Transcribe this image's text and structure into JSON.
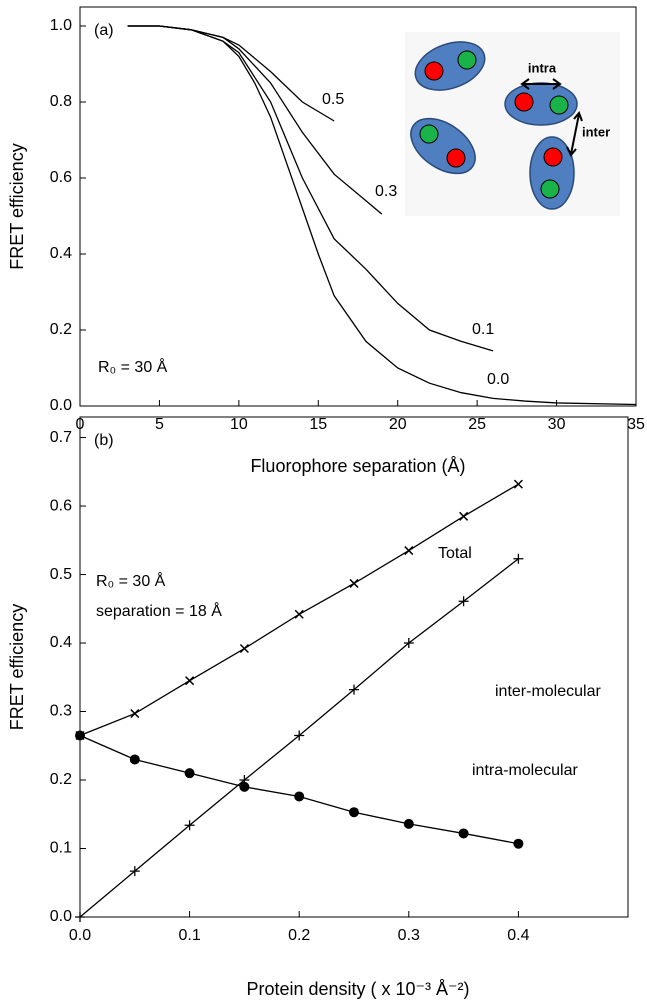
{
  "chart_data": [
    {
      "type": "line",
      "panel_label": "(a)",
      "x_label": "Fluorophore separation (Å)",
      "y_label": "FRET efficiency",
      "annotations": [
        "R₀ = 30 Å"
      ],
      "xlim": [
        0,
        35
      ],
      "ylim": [
        0,
        1.05
      ],
      "xticks": [
        0,
        5,
        10,
        15,
        20,
        25,
        30,
        35
      ],
      "yticks": [
        {
          "value": 0,
          "label": "0.0"
        },
        0.2,
        0.4,
        0.6,
        0.8,
        {
          "value": 1,
          "label": "1.0"
        }
      ],
      "color": "#000000",
      "series": [
        {
          "name": "0.5",
          "x": [
            3,
            5,
            7,
            9,
            10,
            12,
            14,
            16
          ],
          "values": [
            1.0,
            1.0,
            0.99,
            0.97,
            0.95,
            0.88,
            0.8,
            0.75
          ]
        },
        {
          "name": "0.3",
          "x": [
            3,
            5,
            7,
            9,
            10,
            12,
            14,
            16,
            18,
            19
          ],
          "values": [
            1.0,
            1.0,
            0.99,
            0.97,
            0.94,
            0.85,
            0.72,
            0.61,
            0.54,
            0.505
          ]
        },
        {
          "name": "0.1",
          "x": [
            3,
            5,
            7,
            9,
            10,
            12,
            14,
            16,
            18,
            20,
            22,
            24,
            26
          ],
          "values": [
            1.0,
            1.0,
            0.99,
            0.96,
            0.93,
            0.8,
            0.6,
            0.44,
            0.36,
            0.27,
            0.2,
            0.17,
            0.145
          ]
        },
        {
          "name": "0.0",
          "x": [
            3,
            5,
            7,
            9,
            10,
            11,
            12,
            13,
            14,
            15,
            16,
            18,
            20,
            22,
            24,
            26,
            28,
            30,
            35
          ],
          "values": [
            1.0,
            1.0,
            0.99,
            0.96,
            0.92,
            0.85,
            0.76,
            0.64,
            0.52,
            0.4,
            0.29,
            0.17,
            0.1,
            0.06,
            0.035,
            0.02,
            0.013,
            0.008,
            0.004
          ]
        }
      ],
      "inset_labels": [
        "intra",
        "inter"
      ]
    },
    {
      "type": "line",
      "panel_label": "(b)",
      "x_label": "Protein density ( x 10⁻³ Å⁻²)",
      "y_label": "FRET efficiency",
      "annotations": [
        "R₀ = 30 Å",
        "separation = 18 Å"
      ],
      "xlim": [
        0,
        0.5
      ],
      "ylim": [
        0,
        0.73
      ],
      "xticks": [
        {
          "value": 0,
          "label": "0.0"
        },
        0.1,
        0.2,
        0.3,
        0.4
      ],
      "yticks": [
        {
          "value": 0,
          "label": "0.0"
        },
        0.1,
        0.2,
        0.3,
        0.4,
        0.5,
        0.6,
        0.7
      ],
      "color": "#000000",
      "series": [
        {
          "name": "Total",
          "marker": "x",
          "x": [
            0,
            0.05,
            0.1,
            0.15,
            0.2,
            0.25,
            0.3,
            0.35,
            0.4
          ],
          "values": [
            0.265,
            0.297,
            0.345,
            0.392,
            0.442,
            0.487,
            0.535,
            0.585,
            0.632
          ]
        },
        {
          "name": "inter-molecular",
          "marker": "+",
          "x": [
            0,
            0.05,
            0.1,
            0.15,
            0.2,
            0.25,
            0.3,
            0.35,
            0.4
          ],
          "values": [
            0,
            0.067,
            0.134,
            0.2,
            0.265,
            0.332,
            0.4,
            0.461,
            0.523
          ]
        },
        {
          "name": "intra-molecular",
          "marker": "o",
          "x": [
            0,
            0.05,
            0.1,
            0.15,
            0.2,
            0.25,
            0.3,
            0.35,
            0.4
          ],
          "values": [
            0.265,
            0.23,
            0.21,
            0.19,
            0.176,
            0.153,
            0.136,
            0.122,
            0.107
          ]
        }
      ]
    }
  ]
}
